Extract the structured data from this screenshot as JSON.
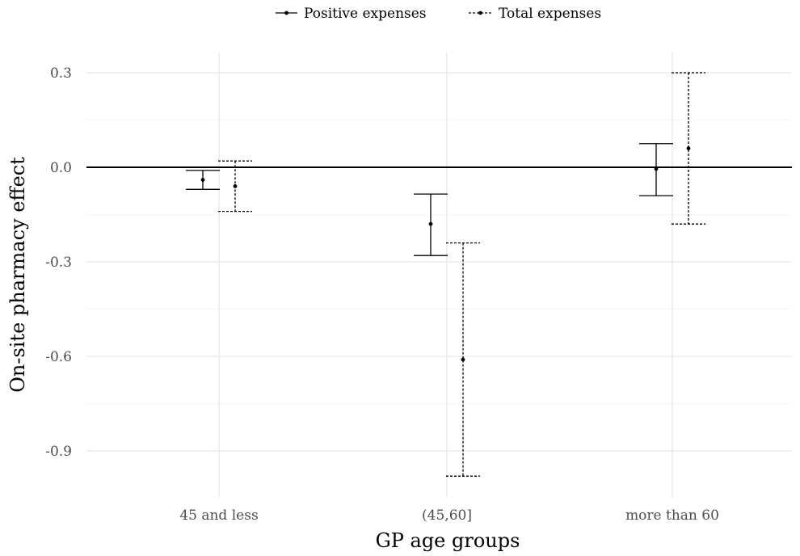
{
  "chart_data": {
    "type": "errorbar",
    "title": "",
    "xlabel": "GP age groups",
    "ylabel": "On-site pharmacy effect",
    "categories": [
      "45 and less",
      "(45,60]",
      "more than 60"
    ],
    "ylim": [
      -1.04,
      0.35
    ],
    "yticks": [
      0.3,
      0.0,
      -0.3,
      -0.6,
      -0.9
    ],
    "ytick_labels": [
      "0.3",
      "0.0",
      "-0.3",
      "-0.6",
      "-0.9"
    ],
    "reference_line": 0.0,
    "grid": true,
    "legend_position": "top",
    "series": [
      {
        "name": "Positive expenses",
        "line_style": "solid",
        "color": "#000000",
        "points": [
          {
            "category": "45 and less",
            "estimate": -0.04,
            "lower": -0.07,
            "upper": -0.01
          },
          {
            "category": "(45,60]",
            "estimate": -0.18,
            "lower": -0.28,
            "upper": -0.085
          },
          {
            "category": "more than 60",
            "estimate": -0.005,
            "lower": -0.09,
            "upper": 0.075
          }
        ]
      },
      {
        "name": "Total expenses",
        "line_style": "dashed",
        "color": "#000000",
        "points": [
          {
            "category": "45 and less",
            "estimate": -0.06,
            "lower": -0.14,
            "upper": 0.02
          },
          {
            "category": "(45,60]",
            "estimate": -0.61,
            "lower": -0.98,
            "upper": -0.24
          },
          {
            "category": "more than 60",
            "estimate": 0.06,
            "lower": -0.18,
            "upper": 0.3
          }
        ]
      }
    ]
  }
}
